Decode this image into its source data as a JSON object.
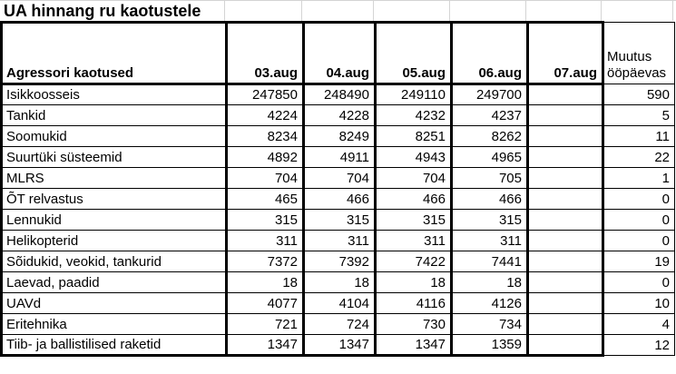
{
  "title": "UA hinnang ru kaotustele",
  "table": {
    "header": {
      "label": "Agressori kaotused",
      "dates": [
        "03.aug",
        "04.aug",
        "05.aug",
        "06.aug",
        "07.aug"
      ],
      "change_label": "Muutus ööpäevas"
    },
    "rows": [
      {
        "label": "Isikkoosseis",
        "values": [
          "247850",
          "248490",
          "249110",
          "249700",
          ""
        ],
        "change": "590"
      },
      {
        "label": "Tankid",
        "values": [
          "4224",
          "4228",
          "4232",
          "4237",
          ""
        ],
        "change": "5"
      },
      {
        "label": "Soomukid",
        "values": [
          "8234",
          "8249",
          "8251",
          "8262",
          ""
        ],
        "change": "11"
      },
      {
        "label": "Suurtüki süsteemid",
        "values": [
          "4892",
          "4911",
          "4943",
          "4965",
          ""
        ],
        "change": "22"
      },
      {
        "label": "MLRS",
        "values": [
          "704",
          "704",
          "704",
          "705",
          ""
        ],
        "change": "1"
      },
      {
        "label": "ÕT relvastus",
        "values": [
          "465",
          "466",
          "466",
          "466",
          ""
        ],
        "change": "0"
      },
      {
        "label": "Lennukid",
        "values": [
          "315",
          "315",
          "315",
          "315",
          ""
        ],
        "change": "0"
      },
      {
        "label": "Helikopterid",
        "values": [
          "311",
          "311",
          "311",
          "311",
          ""
        ],
        "change": "0"
      },
      {
        "label": "Sõidukid, veokid, tankurid",
        "values": [
          "7372",
          "7392",
          "7422",
          "7441",
          ""
        ],
        "change": "19"
      },
      {
        "label": "Laevad, paadid",
        "values": [
          "18",
          "18",
          "18",
          "18",
          ""
        ],
        "change": "0"
      },
      {
        "label": "UAVd",
        "values": [
          "4077",
          "4104",
          "4116",
          "4126",
          ""
        ],
        "change": "10"
      },
      {
        "label": "Eritehnika",
        "values": [
          "721",
          "724",
          "730",
          "734",
          ""
        ],
        "change": "4"
      },
      {
        "label": "Tiib- ja ballistilised raketid",
        "values": [
          "1347",
          "1347",
          "1347",
          "1359",
          ""
        ],
        "change": "12"
      }
    ],
    "colors": {
      "border_thick": "#000000",
      "border_thin": "#000000",
      "gridline_faint": "#d4d4d4",
      "text": "#000000",
      "background": "#ffffff"
    }
  }
}
